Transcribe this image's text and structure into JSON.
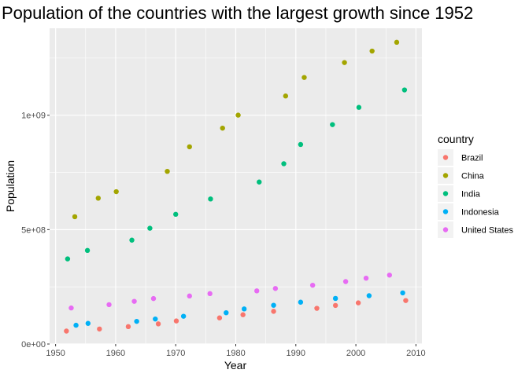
{
  "chart_data": {
    "type": "scatter",
    "title": "Population of the countries with the largest growth since 1952",
    "xlabel": "Year",
    "ylabel": "Population",
    "xlim": [
      1949,
      2011
    ],
    "ylim": [
      0,
      1380000000
    ],
    "x_ticks": [
      1950,
      1960,
      1970,
      1980,
      1990,
      2000,
      2010
    ],
    "x_tick_labels": [
      "1950",
      "1960",
      "1970",
      "1980",
      "1990",
      "2000",
      "2010"
    ],
    "y_ticks": [
      0,
      500000000,
      1000000000
    ],
    "y_tick_labels": [
      "0e+00",
      "5e+08",
      "1e+09"
    ],
    "grid": true,
    "legend": {
      "title": "country",
      "position": "right"
    },
    "series": [
      {
        "name": "Brazil",
        "color": "#F8766D",
        "points": [
          [
            1951.8,
            56600000
          ],
          [
            1957.3,
            65600000
          ],
          [
            1962.1,
            76000000
          ],
          [
            1967.1,
            88000000
          ],
          [
            1970.1,
            100800000
          ],
          [
            1977.3,
            114300000
          ],
          [
            1981.2,
            128000000
          ],
          [
            1986.3,
            142900000
          ],
          [
            1993.5,
            156000000
          ],
          [
            1996.6,
            168500000
          ],
          [
            2000.4,
            179900000
          ],
          [
            2008.3,
            190000000
          ]
        ]
      },
      {
        "name": "China",
        "color": "#A3A500",
        "points": [
          [
            1953.2,
            556300000
          ],
          [
            1957.1,
            637400000
          ],
          [
            1960.1,
            665800000
          ],
          [
            1968.6,
            754600000
          ],
          [
            1972.3,
            862000000
          ],
          [
            1977.8,
            943500000
          ],
          [
            1980.4,
            1000300000
          ],
          [
            1988.3,
            1084000000
          ],
          [
            1991.4,
            1164900000
          ],
          [
            1998.1,
            1230100000
          ],
          [
            2002.7,
            1280400000
          ],
          [
            2006.8,
            1318700000
          ]
        ]
      },
      {
        "name": "India",
        "color": "#00BF7D",
        "points": [
          [
            1952.0,
            372000000
          ],
          [
            1955.3,
            409000000
          ],
          [
            1962.7,
            454000000
          ],
          [
            1965.7,
            506000000
          ],
          [
            1970.0,
            567000000
          ],
          [
            1975.8,
            634000000
          ],
          [
            1983.9,
            708000000
          ],
          [
            1988.0,
            788000000
          ],
          [
            1990.8,
            872000000
          ],
          [
            1996.1,
            959000000
          ],
          [
            2000.5,
            1034200000
          ],
          [
            2008.1,
            1110400000
          ]
        ]
      },
      {
        "name": "Indonesia",
        "color": "#00B0F6",
        "points": [
          [
            1953.4,
            82100000
          ],
          [
            1955.4,
            90100000
          ],
          [
            1963.5,
            99000000
          ],
          [
            1966.6,
            109300000
          ],
          [
            1971.3,
            121300000
          ],
          [
            1978.4,
            136700000
          ],
          [
            1981.4,
            153300000
          ],
          [
            1986.3,
            169300000
          ],
          [
            1990.8,
            182800000
          ],
          [
            1996.6,
            199300000
          ],
          [
            2002.2,
            211100000
          ],
          [
            2007.8,
            223500000
          ]
        ]
      },
      {
        "name": "United States",
        "color": "#E76BF3",
        "points": [
          [
            1952.6,
            157600000
          ],
          [
            1958.9,
            171900000
          ],
          [
            1963.1,
            186500000
          ],
          [
            1966.3,
            198700000
          ],
          [
            1972.3,
            209900000
          ],
          [
            1975.7,
            220200000
          ],
          [
            1983.5,
            232200000
          ],
          [
            1986.6,
            242800000
          ],
          [
            1992.8,
            256900000
          ],
          [
            1998.3,
            272900000
          ],
          [
            2001.7,
            287700000
          ],
          [
            2005.6,
            301100000
          ]
        ]
      }
    ]
  }
}
